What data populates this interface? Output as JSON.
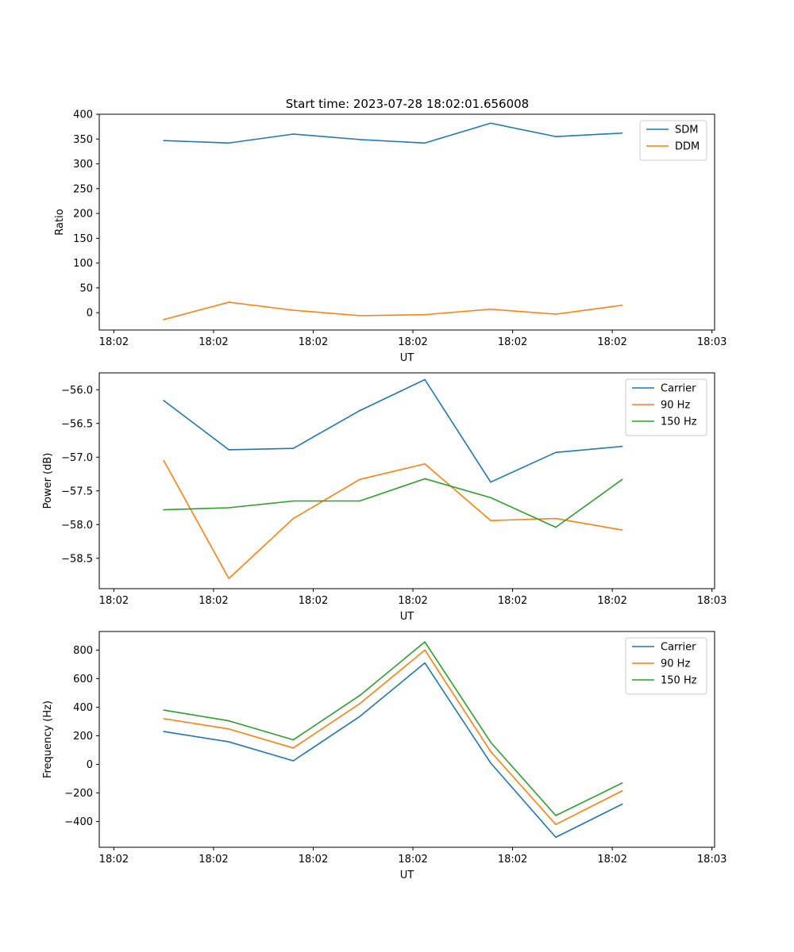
{
  "figure_title": "Start time: 2023-07-28 18:02:01.656008",
  "chart_data": [
    {
      "type": "line",
      "title": "Start time: 2023-07-28 18:02:01.656008",
      "xlabel": "UT",
      "ylabel": "Ratio",
      "xlim": [
        -0.22,
        9.04
      ],
      "ylim": [
        -35,
        400
      ],
      "yticks": [
        0,
        50,
        100,
        150,
        200,
        250,
        300,
        350,
        400
      ],
      "xticks": [
        0,
        1.5,
        3,
        4.5,
        6,
        7.5,
        9
      ],
      "xtick_labels": [
        "18:02",
        "18:02",
        "18:02",
        "18:02",
        "18:02",
        "18:02",
        "18:03"
      ],
      "legend": "top-right",
      "x": [
        0.75,
        1.73,
        2.7,
        3.7,
        4.68,
        5.67,
        6.65,
        7.65
      ],
      "series": [
        {
          "name": "SDM",
          "color": "#1f77b4",
          "values": [
            347,
            342,
            360,
            349,
            342,
            382,
            355,
            362
          ]
        },
        {
          "name": "DDM",
          "color": "#ff7f0e",
          "values": [
            -14,
            21,
            5,
            -6,
            -4,
            7,
            -3,
            15
          ]
        }
      ]
    },
    {
      "type": "line",
      "title": "",
      "xlabel": "UT",
      "ylabel": "Power (dB)",
      "xlim": [
        -0.22,
        9.04
      ],
      "ylim": [
        -58.95,
        -55.75
      ],
      "yticks": [
        -56.0,
        -56.5,
        -57.0,
        -57.5,
        -58.0,
        -58.5
      ],
      "ytick_labels": [
        "−56.0",
        "−56.5",
        "−57.0",
        "−57.5",
        "−58.0",
        "−58.5"
      ],
      "xticks": [
        0,
        1.5,
        3,
        4.5,
        6,
        7.5,
        9
      ],
      "xtick_labels": [
        "18:02",
        "18:02",
        "18:02",
        "18:02",
        "18:02",
        "18:02",
        "18:03"
      ],
      "legend": "top-right",
      "x": [
        0.75,
        1.73,
        2.7,
        3.7,
        4.68,
        5.67,
        6.65,
        7.65
      ],
      "series": [
        {
          "name": "Carrier",
          "color": "#1f77b4",
          "values": [
            -56.16,
            -56.89,
            -56.87,
            -56.31,
            -55.85,
            -57.37,
            -56.93,
            -56.84
          ]
        },
        {
          "name": "90 Hz",
          "color": "#ff7f0e",
          "values": [
            -57.05,
            -58.8,
            -57.91,
            -57.33,
            -57.1,
            -57.94,
            -57.91,
            -58.08
          ]
        },
        {
          "name": "150 Hz",
          "color": "#2ca02c",
          "values": [
            -57.78,
            -57.75,
            -57.65,
            -57.65,
            -57.32,
            -57.6,
            -58.04,
            -57.33
          ]
        }
      ]
    },
    {
      "type": "line",
      "title": "",
      "xlabel": "UT",
      "ylabel": "Frequency (Hz)",
      "xlim": [
        -0.22,
        9.04
      ],
      "ylim": [
        -580,
        930
      ],
      "yticks": [
        800,
        600,
        400,
        200,
        0,
        -200,
        -400
      ],
      "ytick_labels": [
        "800",
        "600",
        "400",
        "200",
        "0",
        "−200",
        "−400"
      ],
      "xticks": [
        0,
        1.5,
        3,
        4.5,
        6,
        7.5,
        9
      ],
      "xtick_labels": [
        "18:02",
        "18:02",
        "18:02",
        "18:02",
        "18:02",
        "18:02",
        "18:03"
      ],
      "legend": "top-right",
      "x": [
        0.75,
        1.73,
        2.7,
        3.7,
        4.68,
        5.67,
        6.65,
        7.65
      ],
      "series": [
        {
          "name": "Carrier",
          "color": "#1f77b4",
          "values": [
            230,
            158,
            25,
            335,
            710,
            10,
            -510,
            -278
          ]
        },
        {
          "name": "90 Hz",
          "color": "#ff7f0e",
          "values": [
            320,
            248,
            115,
            425,
            800,
            90,
            -420,
            -185
          ]
        },
        {
          "name": "150 Hz",
          "color": "#2ca02c",
          "values": [
            380,
            305,
            172,
            482,
            857,
            155,
            -358,
            -130
          ]
        }
      ]
    }
  ]
}
